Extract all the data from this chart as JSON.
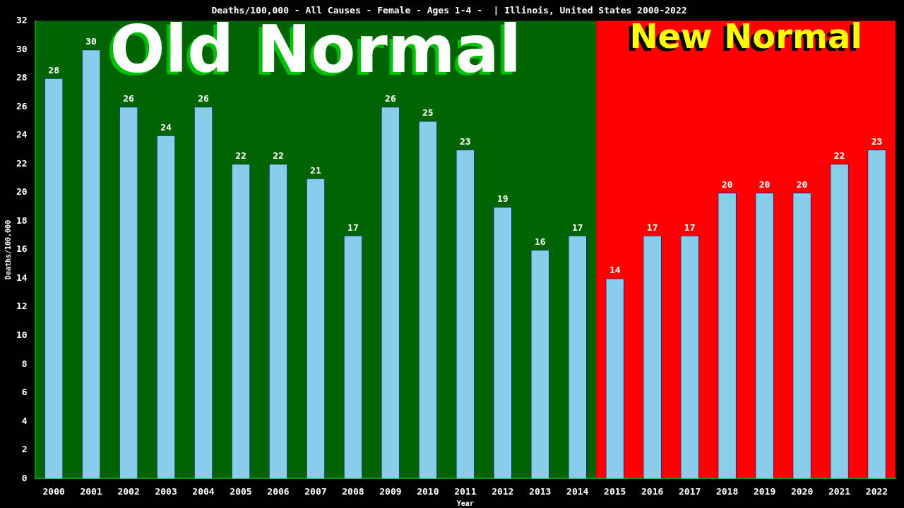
{
  "chart_data": {
    "type": "bar",
    "title": "Deaths/100,000 - All Causes - Female - Ages 1-4 -  | Illinois, United States 2000-2022",
    "xlabel": "Year",
    "ylabel": "Deaths/100,000",
    "categories": [
      "2000",
      "2001",
      "2002",
      "2003",
      "2004",
      "2005",
      "2006",
      "2007",
      "2008",
      "2009",
      "2010",
      "2011",
      "2012",
      "2013",
      "2014",
      "2015",
      "2016",
      "2017",
      "2018",
      "2019",
      "2020",
      "2021",
      "2022"
    ],
    "values": [
      28,
      30,
      26,
      24,
      26,
      22,
      22,
      21,
      17,
      26,
      25,
      23,
      19,
      16,
      17,
      14,
      17,
      17,
      20,
      20,
      20,
      22,
      23
    ],
    "color": "#87ceeb",
    "data_labels": true,
    "legend": false,
    "grid": false,
    "ylim": [
      0,
      32
    ],
    "yticks": [
      0,
      2,
      4,
      6,
      8,
      10,
      12,
      14,
      16,
      18,
      20,
      22,
      24,
      26,
      28,
      30,
      32
    ],
    "bands": [
      {
        "axis": "x",
        "from": "2000",
        "to": "2014",
        "label": "Old Normal",
        "color": "#006400"
      },
      {
        "axis": "x",
        "from": "2015",
        "to": "2022",
        "label": "New Normal",
        "color": "#ff0000"
      }
    ]
  }
}
